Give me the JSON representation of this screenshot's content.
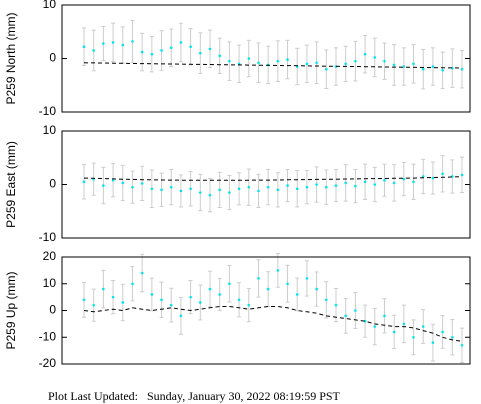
{
  "chart_data": [
    {
      "type": "errorbar",
      "ylabel": "P259 North (mm)",
      "ylim": [
        -10,
        10
      ],
      "yticks": [
        -10,
        0,
        10
      ],
      "series": [
        {
          "color": "#00e5ee",
          "error_color": "#cccccc",
          "values": [
            2.2,
            1.5,
            2.8,
            3.0,
            2.5,
            3.2,
            1.2,
            0.8,
            1.5,
            2.0,
            3.0,
            2.2,
            1.0,
            1.8,
            0.5,
            -0.5,
            -1.0,
            0.0,
            -0.8,
            -1.2,
            -0.5,
            -0.2,
            -1.5,
            -1.0,
            -0.8,
            -2.0,
            -1.5,
            -1.0,
            -0.5,
            0.8,
            0.2,
            -0.5,
            -1.2,
            -1.5,
            -1.0,
            -2.0,
            -1.5,
            -2.2,
            -1.8,
            -2.0
          ],
          "errors": [
            3.5,
            3.8,
            3.2,
            3.6,
            3.4,
            3.9,
            3.5,
            3.3,
            3.7,
            3.5,
            3.6,
            3.4,
            3.8,
            3.5,
            3.3,
            3.6,
            3.5,
            3.4,
            3.7,
            3.5,
            3.8,
            3.6,
            3.4,
            3.5,
            3.9,
            3.6,
            3.5,
            3.3,
            3.7,
            3.5,
            3.6,
            3.4,
            3.8,
            3.5,
            3.6,
            3.7,
            3.5,
            3.4,
            3.6,
            3.5
          ]
        },
        {
          "color": "#000000",
          "dashed": true,
          "values": [
            -0.8,
            -0.83,
            -0.85,
            -0.88,
            -0.9,
            -0.93,
            -0.95,
            -0.98,
            -1.0,
            -1.03,
            -1.05,
            -1.08,
            -1.1,
            -1.13,
            -1.15,
            -1.18,
            -1.2,
            -1.23,
            -1.25,
            -1.28,
            -1.3,
            -1.33,
            -1.35,
            -1.38,
            -1.4,
            -1.43,
            -1.45,
            -1.48,
            -1.5,
            -1.53,
            -1.55,
            -1.58,
            -1.6,
            -1.63,
            -1.65,
            -1.68,
            -1.7,
            -1.73,
            -1.75,
            -1.78
          ]
        }
      ]
    },
    {
      "type": "errorbar",
      "ylabel": "P259 East (mm)",
      "ylim": [
        -10,
        10
      ],
      "yticks": [
        -10,
        0,
        10
      ],
      "series": [
        {
          "color": "#00e5ee",
          "error_color": "#cccccc",
          "values": [
            0.5,
            1.0,
            -0.2,
            0.8,
            0.3,
            -0.5,
            0.2,
            -0.8,
            -1.0,
            -0.5,
            -1.2,
            -0.8,
            -1.5,
            -2.0,
            -1.0,
            -1.5,
            -0.8,
            -0.5,
            -1.2,
            -0.5,
            -1.0,
            -0.2,
            -0.8,
            -0.5,
            0.0,
            -0.5,
            -0.2,
            0.3,
            -0.3,
            0.5,
            0.0,
            0.8,
            0.3,
            1.0,
            0.5,
            1.5,
            1.2,
            2.0,
            1.5,
            1.8
          ],
          "errors": [
            3.2,
            3.0,
            3.4,
            3.1,
            3.3,
            3.0,
            3.2,
            3.5,
            3.1,
            3.3,
            3.0,
            3.2,
            3.4,
            3.1,
            3.3,
            3.2,
            3.0,
            3.4,
            3.1,
            3.3,
            3.2,
            3.0,
            3.4,
            3.1,
            3.3,
            3.2,
            3.0,
            3.4,
            3.1,
            3.3,
            3.2,
            3.0,
            3.4,
            3.1,
            3.3,
            3.2,
            3.0,
            3.4,
            3.1,
            3.3
          ]
        },
        {
          "color": "#000000",
          "dashed": true,
          "values": [
            1.2,
            1.15,
            1.1,
            1.05,
            1.0,
            0.95,
            0.9,
            0.88,
            0.85,
            0.82,
            0.8,
            0.8,
            0.78,
            0.78,
            0.78,
            0.78,
            0.8,
            0.8,
            0.82,
            0.82,
            0.85,
            0.88,
            0.9,
            0.92,
            0.95,
            0.98,
            1.0,
            1.02,
            1.05,
            1.08,
            1.1,
            1.12,
            1.15,
            1.18,
            1.2,
            1.25,
            1.3,
            1.35,
            1.4,
            1.45
          ]
        }
      ]
    },
    {
      "type": "errorbar",
      "ylabel": "P259 Up (mm)",
      "ylim": [
        -20,
        20
      ],
      "yticks": [
        -20,
        -10,
        0,
        10,
        20
      ],
      "series": [
        {
          "color": "#00e5ee",
          "error_color": "#cccccc",
          "values": [
            4,
            2,
            8,
            5,
            3,
            10,
            14,
            6,
            4,
            2,
            -2,
            5,
            3,
            8,
            6,
            10,
            4,
            2,
            12,
            8,
            15,
            10,
            6,
            12,
            8,
            4,
            2,
            -2,
            0,
            -4,
            -6,
            -2,
            -8,
            -5,
            -10,
            -6,
            -12,
            -8,
            -10,
            -13
          ],
          "errors": [
            6.5,
            6.0,
            7.0,
            6.2,
            6.8,
            6.4,
            7.0,
            6.1,
            6.6,
            6.3,
            6.9,
            6.2,
            6.5,
            6.7,
            6.0,
            6.8,
            6.4,
            6.2,
            7.0,
            6.5,
            6.3,
            6.9,
            6.1,
            6.6,
            6.4,
            6.8,
            6.2,
            6.5,
            6.7,
            6.0,
            6.8,
            6.4,
            6.2,
            7.0,
            6.5,
            6.3,
            6.9,
            6.1,
            6.6,
            6.4
          ]
        },
        {
          "color": "#000000",
          "dashed": true,
          "values": [
            0,
            -0.5,
            0,
            0.5,
            0,
            1,
            0.5,
            0,
            0.5,
            1,
            0.5,
            0,
            0.5,
            1,
            1.5,
            1.5,
            1,
            0.5,
            1,
            1.5,
            1.5,
            1,
            0,
            -0.5,
            -1,
            -2,
            -2.5,
            -3,
            -3.5,
            -4,
            -5,
            -5.5,
            -6,
            -6,
            -6.5,
            -7.5,
            -8.5,
            -10,
            -11,
            -11.5
          ]
        }
      ]
    }
  ],
  "footer": {
    "label": "Plot Last Updated:",
    "timestamp": "Sunday, January 30, 2022 08:19:59 PST"
  }
}
